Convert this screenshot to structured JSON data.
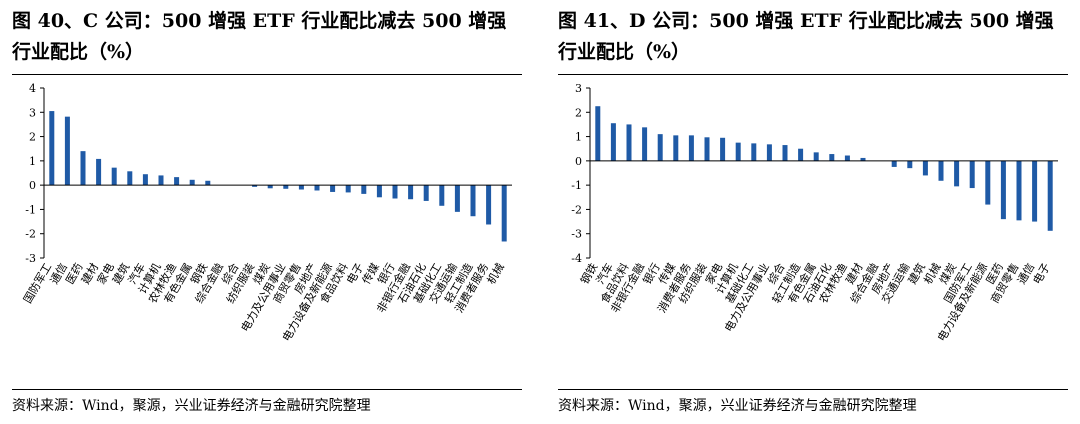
{
  "panels": [
    {
      "title": "图 40、C 公司：500 增强 ETF 行业配比减去 500 增强行业配比（%）",
      "source": "资料来源：Wind，聚源，兴业证券经济与金融研究院整理"
    },
    {
      "title": "图 41、D 公司：500 增强 ETF 行业配比减去 500 增强行业配比（%）",
      "source": "资料来源：Wind，聚源，兴业证券经济与金融研究院整理"
    }
  ],
  "colors": {
    "bar": "#1f5aa6",
    "axis": "#000000",
    "text": "#000000"
  },
  "chart_data": [
    {
      "type": "bar",
      "title": "图 40、C 公司：500 增强 ETF 行业配比减去 500 增强行业配比（%）",
      "xlabel": "",
      "ylabel": "%",
      "ylim": [
        -3,
        4
      ],
      "yticks": [
        4,
        3,
        2,
        1,
        0,
        -1,
        -2,
        -3
      ],
      "categories": [
        "国防军工",
        "通信",
        "医药",
        "建材",
        "家电",
        "建筑",
        "汽车",
        "计算机",
        "农林牧渔",
        "有色金属",
        "钢铁",
        "综合金融",
        "综合",
        "纺织服装",
        "煤炭",
        "电力及公用事业",
        "商贸零售",
        "房地产",
        "电力设备及新能源",
        "食品饮料",
        "电子",
        "传媒",
        "银行",
        "非银行金融",
        "石油石化",
        "基础化工",
        "交通运输",
        "轻工制造",
        "消费者服务",
        "机械"
      ],
      "values": [
        3.05,
        2.82,
        1.4,
        1.08,
        0.72,
        0.57,
        0.45,
        0.4,
        0.33,
        0.22,
        0.18,
        0.0,
        0.0,
        -0.07,
        -0.13,
        -0.15,
        -0.18,
        -0.22,
        -0.28,
        -0.3,
        -0.36,
        -0.5,
        -0.55,
        -0.58,
        -0.65,
        -0.85,
        -1.1,
        -1.28,
        -1.62,
        -2.32
      ]
    },
    {
      "type": "bar",
      "title": "图 41、D 公司：500 增强 ETF 行业配比减去 500 增强行业配比（%）",
      "xlabel": "",
      "ylabel": "%",
      "ylim": [
        -4,
        3
      ],
      "yticks": [
        3,
        2,
        1,
        0,
        -1,
        -2,
        -3,
        -4
      ],
      "categories": [
        "钢铁",
        "汽车",
        "食品饮料",
        "非银行金融",
        "银行",
        "传媒",
        "消费者服务",
        "纺织服装",
        "家电",
        "计算机",
        "基础化工",
        "电力及公用事业",
        "综合",
        "轻工制造",
        "有色金属",
        "石油石化",
        "农林牧渔",
        "建材",
        "综合金融",
        "房地产",
        "交通运输",
        "建筑",
        "机械",
        "煤炭",
        "国防军工",
        "电力设备及新能源",
        "医药",
        "商贸零售",
        "通信",
        "电子"
      ],
      "values": [
        2.25,
        1.55,
        1.5,
        1.38,
        1.1,
        1.05,
        1.05,
        0.97,
        0.95,
        0.75,
        0.72,
        0.68,
        0.65,
        0.5,
        0.35,
        0.28,
        0.22,
        0.12,
        0.0,
        -0.25,
        -0.3,
        -0.6,
        -0.82,
        -1.05,
        -1.12,
        -1.8,
        -2.4,
        -2.45,
        -2.5,
        -2.88
      ]
    }
  ]
}
